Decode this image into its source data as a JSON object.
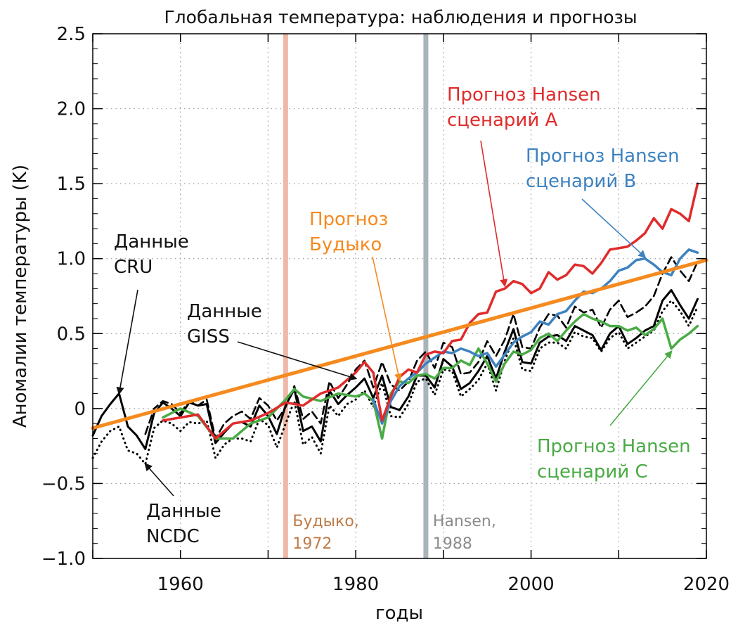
{
  "chart_data": {
    "type": "line",
    "title": "Глобальная температура: наблюдения и прогнозы",
    "xlabel": "годы",
    "ylabel": "Аномалии температуры (K)",
    "xlim": [
      1950,
      2020
    ],
    "ylim": [
      -1.0,
      2.5
    ],
    "grid": true,
    "xticks": [
      {
        "value": 1960,
        "label": "1960"
      },
      {
        "value": 1980,
        "label": "1980"
      },
      {
        "value": 2000,
        "label": "2000"
      },
      {
        "value": 2020,
        "label": "2020"
      }
    ],
    "yticks": [
      {
        "value": 2.5,
        "label": "2.5"
      },
      {
        "value": 2.0,
        "label": "2.0"
      },
      {
        "value": 1.5,
        "label": "1.5"
      },
      {
        "value": 1.0,
        "label": "1.0"
      },
      {
        "value": 0.5,
        "label": "0.5"
      },
      {
        "value": 0,
        "label": "0"
      },
      {
        "value": -0.5,
        "label": "−0.5"
      },
      {
        "value": -1.0,
        "label": "−1.0"
      }
    ],
    "series": [
      {
        "key": "budyko",
        "color": "#f58a1f",
        "style": "solid",
        "x": [
          1950,
          2020
        ],
        "y": [
          -0.13,
          0.99
        ]
      },
      {
        "key": "hansen_a",
        "color": "#e02b2b",
        "style": "solid",
        "x": [
          1958,
          1960,
          1962,
          1964,
          1966,
          1968,
          1970,
          1972,
          1974,
          1976,
          1978,
          1980,
          1981,
          1982,
          1983,
          1984,
          1985,
          1986,
          1987,
          1988,
          1989,
          1990,
          1991,
          1992,
          1993,
          1994,
          1995,
          1996,
          1997,
          1998,
          1999,
          2000,
          2001,
          2002,
          2003,
          2004,
          2005,
          2006,
          2007,
          2008,
          2009,
          2010,
          2011,
          2012,
          2013,
          2014,
          2015,
          2016,
          2017,
          2018,
          2019
        ],
        "y": [
          -0.08,
          -0.06,
          -0.04,
          -0.2,
          -0.1,
          -0.08,
          -0.03,
          0.04,
          0.02,
          0.1,
          0.14,
          0.24,
          0.31,
          0.24,
          -0.08,
          0.08,
          0.21,
          0.26,
          0.24,
          0.36,
          0.38,
          0.37,
          0.45,
          0.46,
          0.57,
          0.63,
          0.64,
          0.78,
          0.8,
          0.85,
          0.83,
          0.77,
          0.8,
          0.91,
          0.86,
          0.89,
          0.96,
          0.95,
          0.9,
          0.97,
          1.06,
          1.07,
          1.08,
          1.12,
          1.17,
          1.27,
          1.2,
          1.33,
          1.3,
          1.25,
          1.5
        ]
      },
      {
        "key": "hansen_b",
        "color": "#3d82c0",
        "style": "solid",
        "x": [
          1982,
          1983,
          1984,
          1985,
          1986,
          1987,
          1988,
          1989,
          1990,
          1991,
          1992,
          1993,
          1994,
          1995,
          1996,
          1997,
          1998,
          1999,
          2000,
          2001,
          2002,
          2003,
          2004,
          2005,
          2006,
          2007,
          2008,
          2009,
          2010,
          2011,
          2012,
          2013,
          2014,
          2015,
          2016,
          2017,
          2018,
          2019
        ],
        "y": [
          0.06,
          -0.1,
          0.05,
          0.15,
          0.2,
          0.24,
          0.3,
          0.34,
          0.38,
          0.37,
          0.4,
          0.38,
          0.35,
          0.37,
          0.28,
          0.36,
          0.44,
          0.48,
          0.51,
          0.58,
          0.56,
          0.63,
          0.65,
          0.72,
          0.78,
          0.77,
          0.8,
          0.85,
          0.92,
          0.94,
          0.99,
          1.0,
          0.96,
          0.91,
          0.89,
          1.0,
          1.06,
          1.04
        ]
      },
      {
        "key": "hansen_c",
        "color": "#4aab45",
        "style": "solid",
        "x": [
          1958,
          1960,
          1962,
          1964,
          1966,
          1968,
          1970,
          1972,
          1973,
          1974,
          1976,
          1978,
          1980,
          1981,
          1982,
          1983,
          1984,
          1985,
          1986,
          1987,
          1988,
          1989,
          1990,
          1991,
          1992,
          1993,
          1994,
          1995,
          1996,
          1997,
          1998,
          1999,
          2000,
          2001,
          2002,
          2003,
          2004,
          2005,
          2006,
          2007,
          2008,
          2009,
          2010,
          2011,
          2012,
          2013,
          2014,
          2015,
          2016,
          2017,
          2018,
          2019
        ],
        "y": [
          -0.06,
          0.0,
          -0.05,
          -0.2,
          -0.2,
          -0.1,
          -0.06,
          0.06,
          0.13,
          0.08,
          0.05,
          0.1,
          0.08,
          0.1,
          0.05,
          -0.2,
          0.1,
          0.18,
          0.17,
          0.22,
          0.23,
          0.2,
          0.27,
          0.27,
          0.32,
          0.29,
          0.4,
          0.3,
          0.18,
          0.3,
          0.38,
          0.36,
          0.39,
          0.47,
          0.5,
          0.45,
          0.52,
          0.58,
          0.63,
          0.6,
          0.58,
          0.55,
          0.55,
          0.52,
          0.54,
          0.49,
          0.53,
          0.6,
          0.4,
          0.46,
          0.5,
          0.55
        ]
      },
      {
        "key": "cru",
        "color": "#000000",
        "style": "solid",
        "x": [
          1950,
          1951,
          1952,
          1953,
          1954,
          1955,
          1956,
          1957,
          1958,
          1959,
          1960,
          1961,
          1962,
          1963,
          1964,
          1965,
          1966,
          1967,
          1968,
          1969,
          1970,
          1971,
          1972,
          1973,
          1974,
          1975,
          1976,
          1977,
          1978,
          1979,
          1980,
          1981,
          1982,
          1983,
          1984,
          1985,
          1986,
          1987,
          1988,
          1989,
          1990,
          1991,
          1992,
          1993,
          1994,
          1995,
          1996,
          1997,
          1998,
          1999,
          2000,
          2001,
          2002,
          2003,
          2004,
          2005,
          2006,
          2007,
          2008,
          2009,
          2010,
          2011,
          2012,
          2013,
          2014,
          2015,
          2016,
          2017,
          2018,
          2019
        ],
        "y": [
          -0.18,
          -0.05,
          0.03,
          0.1,
          -0.12,
          -0.18,
          -0.27,
          -0.03,
          0.04,
          0.0,
          -0.05,
          0.04,
          0.02,
          0.03,
          -0.23,
          -0.16,
          -0.1,
          -0.09,
          -0.12,
          0.02,
          -0.05,
          -0.17,
          0.02,
          0.13,
          -0.15,
          -0.12,
          -0.22,
          0.12,
          0.03,
          0.09,
          0.14,
          0.2,
          0.07,
          0.22,
          0.01,
          -0.01,
          0.08,
          0.22,
          0.22,
          0.14,
          0.33,
          0.28,
          0.13,
          0.17,
          0.25,
          0.35,
          0.2,
          0.38,
          0.53,
          0.31,
          0.3,
          0.44,
          0.48,
          0.49,
          0.45,
          0.55,
          0.52,
          0.49,
          0.39,
          0.5,
          0.55,
          0.43,
          0.47,
          0.52,
          0.55,
          0.72,
          0.79,
          0.69,
          0.6,
          0.73
        ]
      },
      {
        "key": "giss",
        "color": "#000000",
        "style": "dashed",
        "x": [
          1956,
          1957,
          1958,
          1959,
          1960,
          1961,
          1962,
          1963,
          1964,
          1965,
          1966,
          1967,
          1968,
          1969,
          1970,
          1971,
          1972,
          1973,
          1974,
          1975,
          1976,
          1977,
          1978,
          1979,
          1980,
          1981,
          1982,
          1983,
          1984,
          1985,
          1986,
          1987,
          1988,
          1989,
          1990,
          1991,
          1992,
          1993,
          1994,
          1995,
          1996,
          1997,
          1998,
          1999,
          2000,
          2001,
          2002,
          2003,
          2004,
          2005,
          2006,
          2007,
          2008,
          2009,
          2010,
          2011,
          2012,
          2013,
          2014,
          2015,
          2016,
          2017,
          2018,
          2019
        ],
        "y": [
          -0.17,
          0.0,
          0.05,
          0.03,
          -0.03,
          0.05,
          0.02,
          0.06,
          -0.2,
          -0.1,
          -0.05,
          -0.02,
          -0.07,
          0.07,
          0.02,
          -0.08,
          0.01,
          0.15,
          -0.07,
          -0.02,
          -0.1,
          0.18,
          0.07,
          0.16,
          0.26,
          0.32,
          0.14,
          0.31,
          0.16,
          0.12,
          0.18,
          0.32,
          0.38,
          0.27,
          0.44,
          0.41,
          0.23,
          0.24,
          0.31,
          0.45,
          0.35,
          0.46,
          0.63,
          0.41,
          0.4,
          0.54,
          0.63,
          0.62,
          0.54,
          0.68,
          0.64,
          0.66,
          0.54,
          0.66,
          0.72,
          0.61,
          0.64,
          0.68,
          0.75,
          0.9,
          1.01,
          0.92,
          0.85,
          0.98
        ]
      },
      {
        "key": "ncdc",
        "color": "#000000",
        "style": "dotted",
        "x": [
          1950,
          1951,
          1952,
          1953,
          1954,
          1955,
          1956,
          1957,
          1958,
          1959,
          1960,
          1961,
          1962,
          1963,
          1964,
          1965,
          1966,
          1967,
          1968,
          1969,
          1970,
          1971,
          1972,
          1973,
          1974,
          1975,
          1976,
          1977,
          1978,
          1979,
          1980,
          1981,
          1982,
          1983,
          1984,
          1985,
          1986,
          1987,
          1988,
          1989,
          1990,
          1991,
          1992,
          1993,
          1994,
          1995,
          1996,
          1997,
          1998,
          1999,
          2000,
          2001,
          2002,
          2003,
          2004,
          2005,
          2006,
          2007,
          2008,
          2009,
          2010,
          2011,
          2012,
          2013,
          2014,
          2015,
          2016,
          2017,
          2018,
          2019
        ],
        "y": [
          -0.33,
          -0.22,
          -0.15,
          -0.12,
          -0.28,
          -0.3,
          -0.37,
          -0.13,
          -0.08,
          -0.1,
          -0.15,
          -0.09,
          -0.1,
          -0.08,
          -0.33,
          -0.24,
          -0.2,
          -0.2,
          -0.22,
          -0.07,
          -0.11,
          -0.26,
          -0.1,
          0.05,
          -0.24,
          -0.19,
          -0.3,
          0.02,
          -0.05,
          0.03,
          0.06,
          0.12,
          0.01,
          0.17,
          -0.05,
          -0.06,
          0.03,
          0.18,
          0.2,
          0.09,
          0.26,
          0.25,
          0.08,
          0.13,
          0.19,
          0.3,
          0.12,
          0.32,
          0.47,
          0.26,
          0.25,
          0.4,
          0.44,
          0.44,
          0.4,
          0.51,
          0.48,
          0.47,
          0.38,
          0.47,
          0.51,
          0.4,
          0.44,
          0.48,
          0.52,
          0.65,
          0.72,
          0.65,
          0.55,
          0.68
        ]
      }
    ],
    "vlines": [
      {
        "x": 1972,
        "color": "#f0b8a8",
        "label": [
          "Будыко,",
          "1972"
        ],
        "label_color": "#c07a45"
      },
      {
        "x": 1988,
        "color": "#a9b3ba",
        "label": [
          "Hansen,",
          "1988"
        ],
        "label_color": "#8c8c8c"
      }
    ],
    "annotations": [
      {
        "key": "cru",
        "lines": [
          "Данные",
          "CRU"
        ],
        "color": "#111111"
      },
      {
        "key": "giss",
        "lines": [
          "Данные",
          "GISS"
        ],
        "color": "#111111"
      },
      {
        "key": "ncdc",
        "lines": [
          "Данные",
          "NCDC"
        ],
        "color": "#111111"
      },
      {
        "key": "budyko",
        "lines": [
          "Прогноз",
          "Будыко"
        ],
        "color": "#f58a1f"
      },
      {
        "key": "hansen_a",
        "lines": [
          "Прогноз Hansen",
          "сценарий A"
        ],
        "color": "#e02b2b"
      },
      {
        "key": "hansen_b",
        "lines": [
          "Прогноз Hansen",
          "сценарий B"
        ],
        "color": "#3d82c0"
      },
      {
        "key": "hansen_c",
        "lines": [
          "Прогноз Hansen",
          "сценарий C"
        ],
        "color": "#4aab45"
      }
    ]
  }
}
